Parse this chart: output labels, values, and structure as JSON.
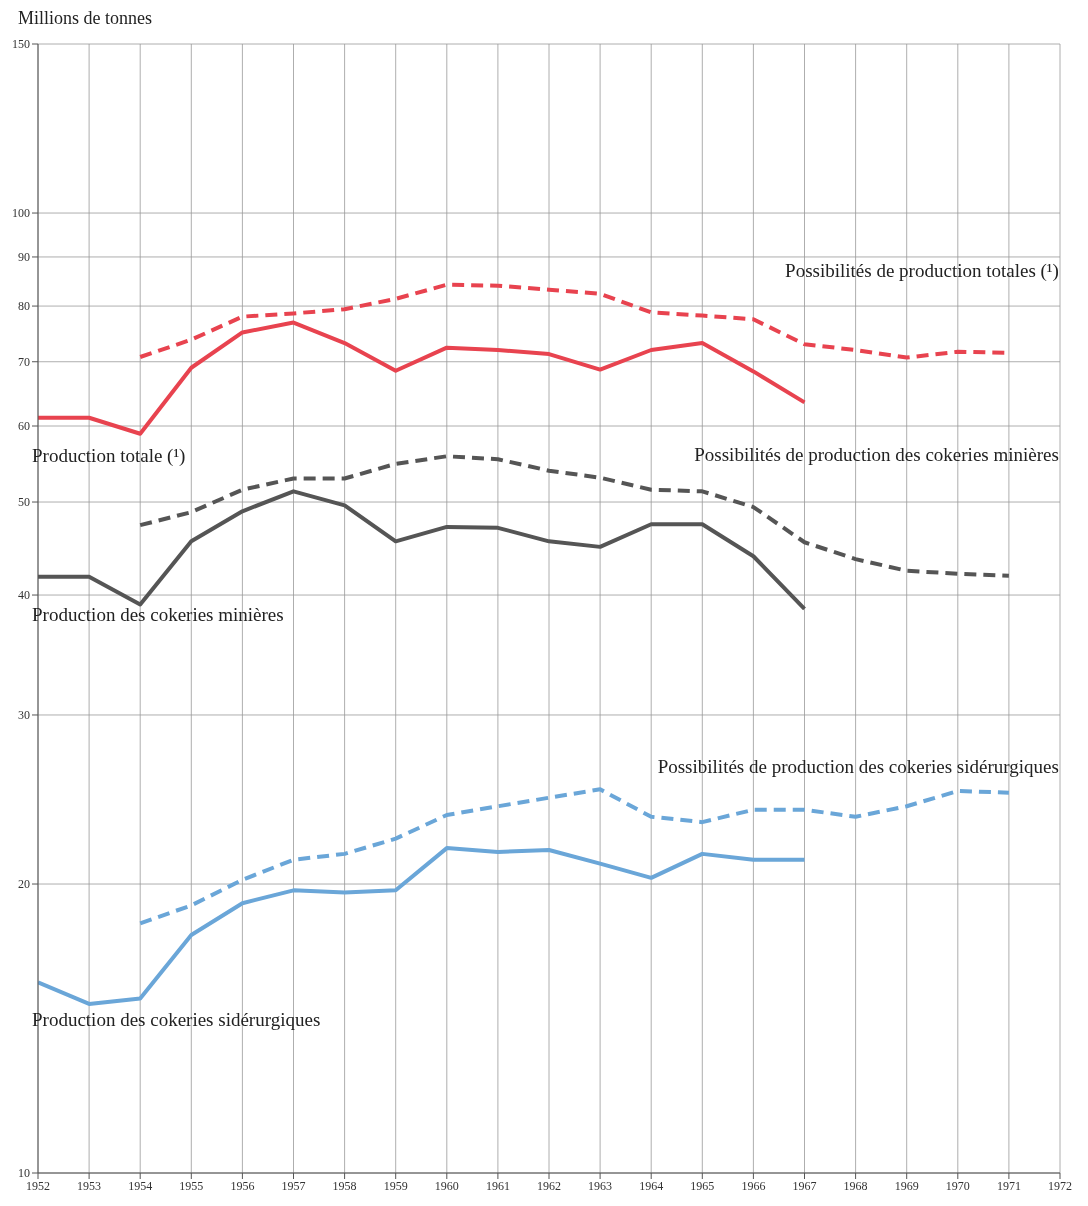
{
  "chart_data": {
    "type": "line",
    "ylabel": "Millions de tonnes",
    "log": "y",
    "grid": true,
    "legend": false,
    "xlim": [
      1952,
      1972
    ],
    "xticks": [
      1952,
      1953,
      1954,
      1955,
      1956,
      1957,
      1958,
      1959,
      1960,
      1961,
      1962,
      1963,
      1964,
      1965,
      1966,
      1967,
      1968,
      1969,
      1970,
      1971,
      1972
    ],
    "ylim": [
      10,
      150
    ],
    "yticks": [
      10,
      20,
      30,
      40,
      50,
      60,
      70,
      80,
      90,
      100,
      150
    ],
    "series": [
      {
        "name": "Possibilités de production totales (¹)",
        "color": "#e8434f",
        "line_style": "dashed",
        "x": [
          1954,
          1955,
          1956,
          1957,
          1958,
          1959,
          1960,
          1961,
          1962,
          1963,
          1964,
          1965,
          1966,
          1967,
          1968,
          1969,
          1970,
          1971
        ],
        "values": [
          70.8,
          73.8,
          78.0,
          78.6,
          79.4,
          81.4,
          84.2,
          84.0,
          83.2,
          82.4,
          78.8,
          78.2,
          77.5,
          73.0,
          72.0,
          70.7,
          71.7,
          71.5
        ]
      },
      {
        "name": "Production totale (¹)",
        "color": "#e8434f",
        "line_style": "solid",
        "x": [
          1952,
          1953,
          1954,
          1955,
          1956,
          1957,
          1958,
          1959,
          1960,
          1961,
          1962,
          1963,
          1964,
          1965,
          1966,
          1967
        ],
        "values": [
          61.2,
          61.2,
          58.9,
          69.0,
          75.1,
          76.9,
          73.2,
          68.5,
          72.4,
          72.0,
          71.3,
          68.7,
          72.0,
          73.2,
          68.4,
          63.5
        ]
      },
      {
        "name": "Possibilités de production des cokeries minières",
        "color": "#555555",
        "line_style": "dashed",
        "x": [
          1954,
          1955,
          1956,
          1957,
          1958,
          1959,
          1960,
          1961,
          1962,
          1963,
          1964,
          1965,
          1966,
          1967,
          1968,
          1969,
          1970,
          1971
        ],
        "values": [
          47.3,
          48.8,
          51.5,
          52.9,
          52.9,
          54.8,
          55.8,
          55.4,
          53.9,
          53.0,
          51.5,
          51.3,
          49.4,
          45.4,
          43.6,
          42.4,
          42.1,
          41.9
        ]
      },
      {
        "name": "Production des cokeries minières",
        "color": "#555555",
        "line_style": "solid",
        "x": [
          1952,
          1953,
          1954,
          1955,
          1956,
          1957,
          1958,
          1959,
          1960,
          1961,
          1962,
          1963,
          1964,
          1965,
          1966,
          1967
        ],
        "values": [
          41.8,
          41.8,
          39.1,
          45.5,
          48.9,
          51.3,
          49.6,
          45.5,
          47.1,
          47.0,
          45.5,
          44.9,
          47.4,
          47.4,
          43.9,
          38.7
        ]
      },
      {
        "name": "Possibilités de production des cokeries sidérurgiques",
        "color": "#6aa6d8",
        "line_style": "dashed",
        "x": [
          1954,
          1955,
          1956,
          1957,
          1958,
          1959,
          1960,
          1961,
          1962,
          1963,
          1964,
          1965,
          1966,
          1967,
          1968,
          1969,
          1970,
          1971
        ],
        "values": [
          18.2,
          19.0,
          20.2,
          21.2,
          21.5,
          22.3,
          23.6,
          24.1,
          24.6,
          25.1,
          23.5,
          23.2,
          23.9,
          23.9,
          23.5,
          24.1,
          25.0,
          24.9
        ]
      },
      {
        "name": "Production des cokeries sidérurgiques",
        "color": "#6aa6d8",
        "line_style": "solid",
        "x": [
          1952,
          1953,
          1954,
          1955,
          1956,
          1957,
          1958,
          1959,
          1960,
          1961,
          1962,
          1963,
          1964,
          1965,
          1966,
          1967
        ],
        "values": [
          15.8,
          15.0,
          15.2,
          17.7,
          19.1,
          19.7,
          19.6,
          19.7,
          21.8,
          21.6,
          21.7,
          21.0,
          20.3,
          21.5,
          21.2,
          21.2
        ]
      }
    ]
  }
}
